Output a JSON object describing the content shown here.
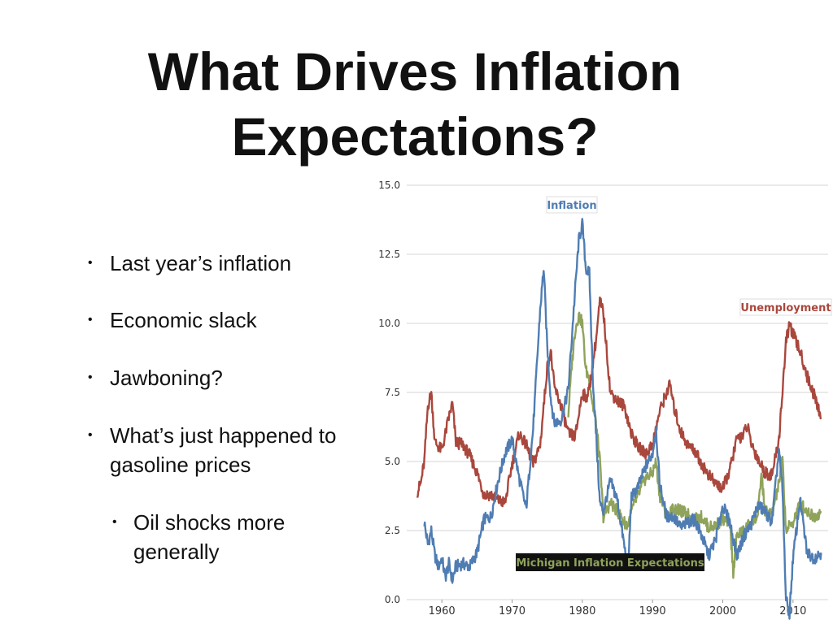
{
  "slide": {
    "title_line1": "What Drives Inflation",
    "title_line2": "Expectations?",
    "bullets": [
      {
        "text": "Last year’s inflation"
      },
      {
        "text": "Economic slack"
      },
      {
        "text": "Jawboning?"
      },
      {
        "text": "What’s just happened to gasoline prices"
      }
    ],
    "sub_bullets": [
      {
        "text": "Oil shocks more generally"
      }
    ],
    "bullet_symbol": "•"
  },
  "chart_data": {
    "type": "line",
    "title": "",
    "xlabel": "",
    "ylabel": "",
    "xlim": [
      1955,
      2015
    ],
    "ylim": [
      0,
      15
    ],
    "yticks": [
      "0.0",
      "2.5",
      "5.0",
      "7.5",
      "10.0",
      "12.5",
      "15.0"
    ],
    "xticks": [
      "1960",
      "1970",
      "1980",
      "1990",
      "2000",
      "2010"
    ],
    "grid": true,
    "series": [
      {
        "name": "Inflation",
        "color": "#4f7db3",
        "x": [
          1957.5,
          1958,
          1958.5,
          1959,
          1959.5,
          1960,
          1960.5,
          1961,
          1961.5,
          1962,
          1963,
          1964,
          1965,
          1966,
          1967,
          1968,
          1969,
          1970,
          1971,
          1972,
          1973,
          1974,
          1974.5,
          1975,
          1975.5,
          1976,
          1977,
          1978,
          1979,
          1979.5,
          1980,
          1980.5,
          1981,
          1981.5,
          1982,
          1982.5,
          1983,
          1984,
          1985,
          1986,
          1986.5,
          1987,
          1988,
          1989,
          1990,
          1990.5,
          1991,
          1992,
          1993,
          1994,
          1995,
          1996,
          1997,
          1998,
          1999,
          2000,
          2001,
          2002,
          2003,
          2004,
          2005,
          2006,
          2007,
          2008,
          2008.5,
          2009,
          2009.5,
          2010,
          2011,
          2012,
          2013,
          2014
        ],
        "y": [
          2.8,
          2.0,
          2.5,
          1.6,
          1.2,
          1.5,
          0.8,
          1.3,
          0.7,
          1.2,
          1.3,
          1.2,
          1.7,
          2.9,
          3.0,
          4.3,
          5.3,
          5.8,
          4.4,
          3.3,
          6.2,
          10.5,
          12.0,
          9.2,
          7.3,
          6.4,
          6.5,
          7.6,
          11.3,
          13.0,
          13.6,
          12.0,
          11.8,
          8.0,
          5.8,
          3.5,
          3.2,
          4.3,
          3.6,
          1.9,
          1.1,
          3.7,
          4.1,
          4.8,
          5.3,
          6.2,
          4.2,
          3.0,
          3.0,
          2.6,
          2.8,
          2.9,
          2.3,
          1.6,
          2.2,
          3.4,
          2.8,
          1.6,
          2.3,
          2.7,
          3.4,
          3.2,
          2.8,
          5.4,
          4.0,
          0.0,
          -0.5,
          1.5,
          3.6,
          1.7,
          1.5,
          1.7
        ]
      },
      {
        "name": "Unemployment",
        "color": "#a9473d",
        "x": [
          1956.5,
          1957,
          1957.5,
          1958,
          1958.5,
          1959,
          1960,
          1961,
          1961.5,
          1962,
          1963,
          1964,
          1965,
          1966,
          1967,
          1968,
          1969,
          1970,
          1971,
          1972,
          1973,
          1974,
          1975,
          1975.5,
          1976,
          1977,
          1978,
          1979,
          1980,
          1980.5,
          1981,
          1982,
          1982.5,
          1983,
          1984,
          1985,
          1986,
          1987,
          1988,
          1989,
          1990,
          1991,
          1992,
          1992.5,
          1993,
          1994,
          1995,
          1996,
          1997,
          1998,
          1999,
          2000,
          2001,
          2002,
          2003,
          2003.5,
          2004,
          2005,
          2006,
          2007,
          2008,
          2009,
          2009.5,
          2010,
          2011,
          2012,
          2013,
          2014
        ],
        "y": [
          3.9,
          4.2,
          5.0,
          7.0,
          7.5,
          5.7,
          5.4,
          6.6,
          7.1,
          5.7,
          5.6,
          5.2,
          4.6,
          3.8,
          3.8,
          3.6,
          3.5,
          4.9,
          6.0,
          5.6,
          4.9,
          5.6,
          8.4,
          9.0,
          7.7,
          7.0,
          6.0,
          5.9,
          7.5,
          7.3,
          7.6,
          9.5,
          10.8,
          10.4,
          7.5,
          7.2,
          7.0,
          6.0,
          5.5,
          5.3,
          5.6,
          6.8,
          7.5,
          7.8,
          7.0,
          6.1,
          5.6,
          5.4,
          4.9,
          4.5,
          4.2,
          4.0,
          4.7,
          5.8,
          6.0,
          6.3,
          5.7,
          5.1,
          4.6,
          4.5,
          5.8,
          9.3,
          10.0,
          9.6,
          9.0,
          8.1,
          7.4,
          6.6
        ]
      },
      {
        "name": "Michigan Inflation Expectations",
        "color": "#8fa35a",
        "x": [
          1978,
          1978.5,
          1979,
          1979.5,
          1980,
          1980.5,
          1981,
          1981.5,
          1982,
          1982.5,
          1983,
          1984,
          1985,
          1986,
          1986.5,
          1987,
          1988,
          1989,
          1990,
          1990.5,
          1991,
          1992,
          1993,
          1994,
          1995,
          1996,
          1997,
          1998,
          1999,
          2000,
          2001,
          2001.5,
          2002,
          2003,
          2004,
          2005,
          2005.5,
          2006,
          2007,
          2008,
          2008.5,
          2009,
          2010,
          2011,
          2012,
          2013,
          2014
        ],
        "y": [
          6.7,
          8.5,
          9.8,
          10.3,
          10.0,
          8.3,
          8.0,
          7.0,
          6.3,
          5.0,
          3.0,
          3.5,
          3.2,
          2.8,
          2.7,
          3.2,
          3.8,
          4.4,
          4.6,
          5.0,
          3.8,
          3.0,
          3.3,
          3.2,
          3.1,
          2.9,
          3.0,
          2.6,
          2.7,
          2.9,
          2.8,
          1.0,
          2.3,
          2.5,
          2.8,
          3.0,
          4.6,
          3.2,
          3.1,
          4.2,
          5.1,
          2.5,
          2.8,
          3.5,
          3.2,
          3.0,
          3.2
        ]
      }
    ],
    "annotations": [
      {
        "text": "Inflation",
        "series": "Inflation"
      },
      {
        "text": "Unemployment",
        "series": "Unemployment"
      },
      {
        "text": "Michigan Inflation Expectations",
        "series": "Michigan Inflation Expectations"
      }
    ],
    "annotation_colors": {
      "inflation_bg": "#ffffff",
      "michigan_bg": "#111111"
    }
  }
}
